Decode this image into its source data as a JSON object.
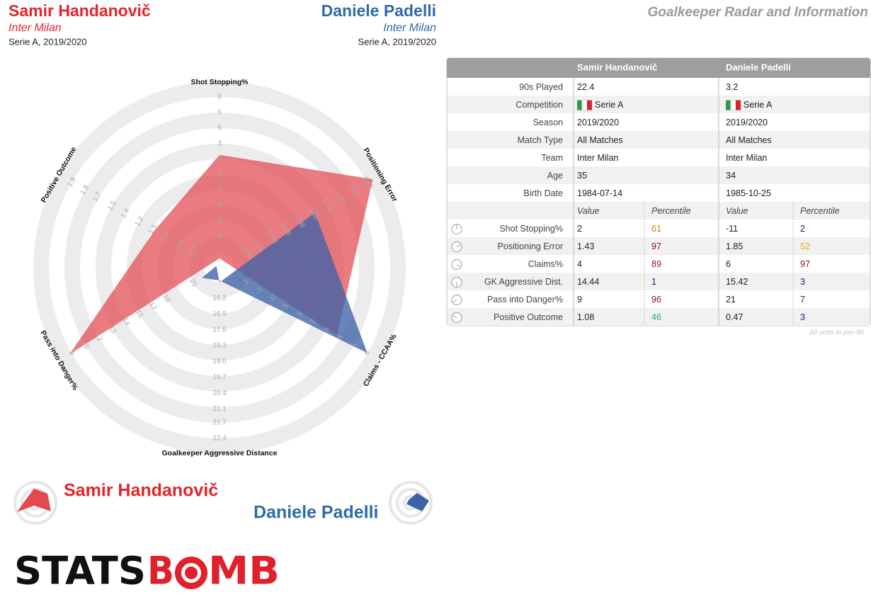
{
  "page_title": "Goalkeeper Radar and Information",
  "players": [
    {
      "team": "Inter Milan",
      "league_season": "Serie A, 2019/2020",
      "color": "#e2252b"
    },
    {
      "team": "Inter Milan",
      "league_season": "Serie A, 2019/2020",
      "color": "#2f6aa7"
    }
  ],
  "chart_data": {
    "type": "radar",
    "axes": [
      {
        "name": "Shot Stopping%",
        "lim": [
          -6.4,
          7.9
        ],
        "ticks": [
          {
            "value": -6.4,
            "label": "-6"
          },
          {
            "value": -4.81,
            "label": "-5"
          },
          {
            "value": -3.22,
            "label": "-3"
          },
          {
            "value": -1.63,
            "label": "-2"
          },
          {
            "value": -0.04,
            "label": "-0"
          },
          {
            "value": 1.54,
            "label": "2"
          },
          {
            "value": 3.13,
            "label": "3"
          },
          {
            "value": 4.72,
            "label": "5"
          },
          {
            "value": 6.31,
            "label": "6"
          },
          {
            "value": 7.9,
            "label": "8"
          }
        ]
      },
      {
        "name": "Positioning Error",
        "lim": [
          2.35,
          1.47
        ],
        "ticks": [
          2.35,
          2.26,
          2.16,
          2.06,
          1.96,
          1.86,
          1.76,
          1.67,
          1.57,
          1.47
        ]
      },
      {
        "name": "Claims - CCAA%",
        "lim": [
          -2,
          6
        ],
        "ticks": [
          -2,
          {
            "value": -1.11,
            "label": "-1"
          },
          {
            "value": -0.22,
            "label": "-0"
          },
          {
            "value": 0.67,
            "label": "1"
          },
          {
            "value": 1.56,
            "label": "2"
          },
          {
            "value": 2.44,
            "label": "2"
          },
          {
            "value": 3.33,
            "label": "3"
          },
          {
            "value": 4.22,
            "label": "4"
          },
          {
            "value": 5.11,
            "label": "5"
          },
          6
        ]
      },
      {
        "name": "Goalkeeper Aggressive Distance",
        "lim": [
          16.2,
          22.4
        ],
        "ticks": [
          16.2,
          16.9,
          17.6,
          18.3,
          {
            "value": 19,
            "label": "19.0"
          },
          19.7,
          20.4,
          21.1,
          21.7,
          22.4
        ]
      },
      {
        "name": "Pass into Danger%",
        "lim": [
          20.2,
          9.2
        ],
        "ticks": [
          {
            "value": 20.2,
            "label": "20"
          },
          {
            "value": 17.76,
            "label": "18"
          },
          {
            "value": 16.53,
            "label": "17"
          },
          {
            "value": 15.31,
            "label": "15"
          },
          {
            "value": 14.09,
            "label": "14"
          },
          {
            "value": 12.87,
            "label": "13"
          },
          {
            "value": 11.64,
            "label": "12"
          },
          {
            "value": 10.42,
            "label": "10"
          },
          {
            "value": 9.2,
            "label": "9"
          }
        ]
      },
      {
        "name": "Positive Outcome",
        "lim": [
          0.7,
          1.9
        ],
        "ticks": [
          0.7,
          {
            "value": 0.83,
            "label": "0.8"
          },
          {
            "value": 0.97,
            "label": "1.0"
          },
          1.1,
          {
            "value": 1.23,
            "label": "1.2"
          },
          {
            "value": 1.37,
            "label": "1.4"
          },
          1.5,
          {
            "value": 1.65,
            "label": "1.7"
          },
          {
            "value": 1.77,
            "label": "1.8"
          },
          1.9
        ]
      }
    ],
    "series": [
      {
        "name": "Samir Handanovič",
        "color": "#e24a50",
        "values": [
          2,
          1.43,
          4,
          14.44,
          9,
          1.08
        ]
      },
      {
        "name": "Daniele Padelli",
        "color": "#3d63a6",
        "values": [
          -11,
          1.85,
          6,
          15.42,
          21,
          0.47
        ]
      }
    ]
  },
  "table": {
    "subheaders": [
      "Value",
      "Percentile"
    ],
    "info": [
      {
        "label": "90s Played",
        "values": [
          22.4,
          3.2
        ]
      },
      {
        "label": "Competition",
        "values": [
          "Serie A",
          "Serie A"
        ]
      },
      {
        "label": "Season",
        "values": [
          "2019/2020",
          "2019/2020"
        ]
      },
      {
        "label": "Match Type",
        "values": [
          "All Matches",
          "All Matches"
        ]
      },
      {
        "label": "Team",
        "values": [
          "Inter Milan",
          "Inter Milan"
        ]
      },
      {
        "label": "Age",
        "values": [
          35,
          34
        ]
      },
      {
        "label": "Birth Date",
        "values": [
          "1984-07-14",
          "1985-10-25"
        ]
      }
    ],
    "metrics": [
      {
        "label": "Shot Stopping%",
        "percentiles": [
          61,
          2
        ]
      },
      {
        "label": "Positioning Error",
        "percentiles": [
          97,
          52
        ]
      },
      {
        "label": "Claims%",
        "percentiles": [
          89,
          97
        ]
      },
      {
        "label": "GK Aggressive Dist.",
        "percentiles": [
          1,
          3
        ]
      },
      {
        "label": "Pass into Danger%",
        "percentiles": [
          96,
          7
        ]
      },
      {
        "label": "Positive Outcome",
        "percentiles": [
          46,
          3
        ]
      }
    ],
    "note": "All units in per-90"
  },
  "logo": [
    "STATS",
    "B",
    "MB"
  ]
}
